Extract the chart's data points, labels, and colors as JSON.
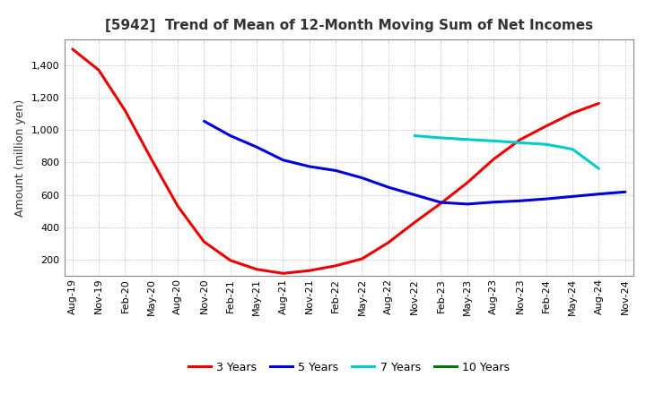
{
  "title": "[5942]  Trend of Mean of 12-Month Moving Sum of Net Incomes",
  "ylabel": "Amount (million yen)",
  "background_color": "#ffffff",
  "grid_color": "#aaaaaa",
  "ylim": [
    100,
    1560
  ],
  "yticks": [
    200,
    400,
    600,
    800,
    1000,
    1200,
    1400
  ],
  "series": {
    "3 Years": {
      "color": "#ee0000",
      "data": [
        [
          "Aug-19",
          1500
        ],
        [
          "Nov-19",
          1370
        ],
        [
          "Feb-20",
          1120
        ],
        [
          "May-20",
          820
        ],
        [
          "Aug-20",
          530
        ],
        [
          "Nov-20",
          310
        ],
        [
          "Feb-21",
          195
        ],
        [
          "May-21",
          140
        ],
        [
          "Aug-21",
          115
        ],
        [
          "Nov-21",
          132
        ],
        [
          "Feb-22",
          162
        ],
        [
          "May-22",
          205
        ],
        [
          "Aug-22",
          305
        ],
        [
          "Nov-22",
          430
        ],
        [
          "Feb-23",
          548
        ],
        [
          "May-23",
          675
        ],
        [
          "Aug-23",
          820
        ],
        [
          "Nov-23",
          940
        ],
        [
          "Feb-24",
          1025
        ],
        [
          "May-24",
          1105
        ],
        [
          "Aug-24",
          1165
        ],
        [
          "Nov-24",
          null
        ]
      ]
    },
    "5 Years": {
      "color": "#0000dd",
      "data": [
        [
          "Aug-19",
          null
        ],
        [
          "Nov-19",
          null
        ],
        [
          "Feb-20",
          null
        ],
        [
          "May-20",
          null
        ],
        [
          "Aug-20",
          null
        ],
        [
          "Nov-20",
          1055
        ],
        [
          "Feb-21",
          965
        ],
        [
          "May-21",
          895
        ],
        [
          "Aug-21",
          815
        ],
        [
          "Nov-21",
          775
        ],
        [
          "Feb-22",
          750
        ],
        [
          "May-22",
          705
        ],
        [
          "Aug-22",
          647
        ],
        [
          "Nov-22",
          600
        ],
        [
          "Feb-23",
          553
        ],
        [
          "May-23",
          543
        ],
        [
          "Aug-23",
          555
        ],
        [
          "Nov-23",
          563
        ],
        [
          "Feb-24",
          575
        ],
        [
          "May-24",
          590
        ],
        [
          "Aug-24",
          605
        ],
        [
          "Nov-24",
          618
        ]
      ]
    },
    "7 Years": {
      "color": "#00cccc",
      "data": [
        [
          "Aug-19",
          null
        ],
        [
          "Nov-19",
          null
        ],
        [
          "Feb-20",
          null
        ],
        [
          "May-20",
          null
        ],
        [
          "Aug-20",
          null
        ],
        [
          "Nov-20",
          null
        ],
        [
          "Feb-21",
          null
        ],
        [
          "May-21",
          null
        ],
        [
          "Aug-21",
          null
        ],
        [
          "Nov-21",
          null
        ],
        [
          "Feb-22",
          null
        ],
        [
          "May-22",
          null
        ],
        [
          "Aug-22",
          null
        ],
        [
          "Nov-22",
          965
        ],
        [
          "Feb-23",
          952
        ],
        [
          "May-23",
          942
        ],
        [
          "Aug-23",
          933
        ],
        [
          "Nov-23",
          922
        ],
        [
          "Feb-24",
          912
        ],
        [
          "May-24",
          882
        ],
        [
          "Aug-24",
          762
        ],
        [
          "Nov-24",
          null
        ]
      ]
    },
    "10 Years": {
      "color": "#007700",
      "data": [
        [
          "Aug-19",
          null
        ],
        [
          "Nov-19",
          null
        ],
        [
          "Feb-20",
          null
        ],
        [
          "May-20",
          null
        ],
        [
          "Aug-20",
          null
        ],
        [
          "Nov-20",
          null
        ],
        [
          "Feb-21",
          null
        ],
        [
          "May-21",
          null
        ],
        [
          "Aug-21",
          null
        ],
        [
          "Nov-21",
          null
        ],
        [
          "Feb-22",
          null
        ],
        [
          "May-22",
          null
        ],
        [
          "Aug-22",
          null
        ],
        [
          "Nov-22",
          null
        ],
        [
          "Feb-23",
          null
        ],
        [
          "May-23",
          null
        ],
        [
          "Aug-23",
          null
        ],
        [
          "Nov-23",
          null
        ],
        [
          "Feb-24",
          null
        ],
        [
          "May-24",
          null
        ],
        [
          "Aug-24",
          null
        ],
        [
          "Nov-24",
          null
        ]
      ]
    }
  },
  "x_labels": [
    "Aug-19",
    "Nov-19",
    "Feb-20",
    "May-20",
    "Aug-20",
    "Nov-20",
    "Feb-21",
    "May-21",
    "Aug-21",
    "Nov-21",
    "Feb-22",
    "May-22",
    "Aug-22",
    "Nov-22",
    "Feb-23",
    "May-23",
    "Aug-23",
    "Nov-23",
    "Feb-24",
    "May-24",
    "Aug-24",
    "Nov-24"
  ],
  "legend_entries": [
    "3 Years",
    "5 Years",
    "7 Years",
    "10 Years"
  ],
  "legend_colors": [
    "#ee0000",
    "#0000dd",
    "#00cccc",
    "#007700"
  ],
  "title_color": "#333333",
  "title_fontsize": 11,
  "tick_fontsize": 8,
  "ylabel_fontsize": 9
}
